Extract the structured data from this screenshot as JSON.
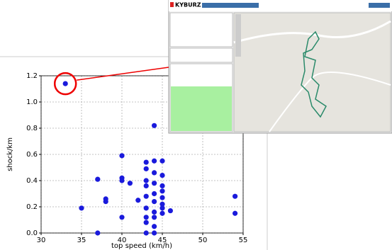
{
  "chart_data": {
    "type": "scatter",
    "x_label": "top speed (km/h)",
    "y_label": "shock/km",
    "color": "#1a1adc",
    "grid": true,
    "x": [
      33,
      44,
      40,
      37,
      40,
      40,
      41,
      38,
      38,
      35,
      37,
      40,
      42,
      43,
      43,
      43,
      43,
      43,
      43,
      43,
      43,
      43,
      44,
      44,
      44,
      44,
      44,
      44,
      44,
      44,
      44,
      45,
      45,
      45,
      45,
      45,
      45,
      45,
      45,
      46,
      54,
      54
    ],
    "values": [
      1.14,
      0.82,
      0.59,
      0.41,
      0.42,
      0.4,
      0.38,
      0.26,
      0.24,
      0.19,
      0.0,
      0.12,
      0.25,
      0.54,
      0.49,
      0.4,
      0.36,
      0.28,
      0.19,
      0.12,
      0.08,
      0.0,
      0.55,
      0.46,
      0.38,
      0.3,
      0.24,
      0.16,
      0.12,
      0.05,
      0.0,
      0.55,
      0.44,
      0.36,
      0.32,
      0.27,
      0.22,
      0.19,
      0.15,
      0.17,
      0.28,
      0.15
    ],
    "xlim": [
      30,
      55
    ],
    "xticks": [
      30,
      35,
      40,
      45,
      50,
      55
    ],
    "ylim": [
      0,
      1.2
    ],
    "yticks": [
      {
        "value": 0,
        "label": "0.0"
      },
      0.2,
      0.4,
      0.6,
      0.8,
      {
        "value": 1,
        "label": "1.0"
      },
      1.2
    ]
  },
  "inset": {
    "logo": "KYBURZ"
  }
}
